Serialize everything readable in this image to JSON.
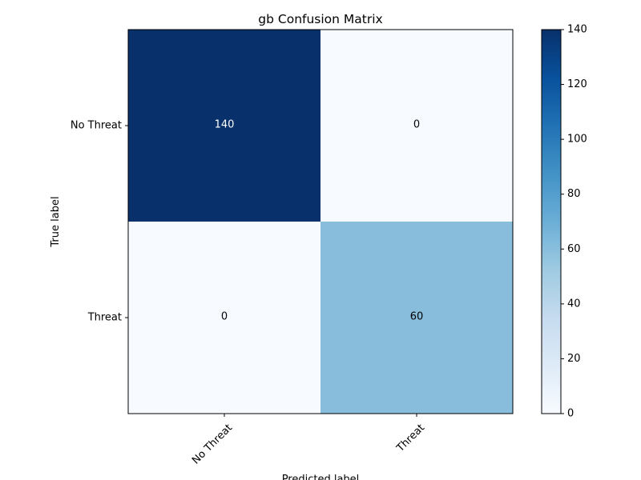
{
  "chart_data": {
    "type": "heatmap",
    "title": "gb Confusion Matrix",
    "xlabel": "Predicted label",
    "ylabel": "True label",
    "x_categories": [
      "No Threat",
      "Threat"
    ],
    "y_categories": [
      "No Threat",
      "Threat"
    ],
    "values": [
      [
        140,
        0
      ],
      [
        0,
        60
      ]
    ],
    "colormap": "Blues",
    "colorbar": {
      "range": [
        0,
        140
      ],
      "ticks": [
        0,
        20,
        40,
        60,
        80,
        100,
        120,
        140
      ]
    },
    "text_color_dark": "#000000",
    "text_color_light": "#ffffff",
    "grid": false,
    "tick_label_rotation_x": 45
  }
}
